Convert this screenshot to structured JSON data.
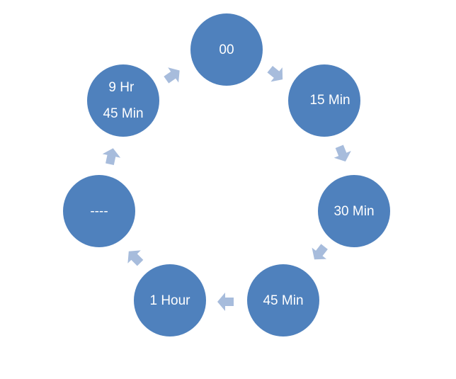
{
  "cycle": {
    "nodes": [
      {
        "lines": [
          "00"
        ]
      },
      {
        "lines": [
          "15 Min"
        ]
      },
      {
        "lines": [
          "30 Min"
        ]
      },
      {
        "lines": [
          "45 Min"
        ]
      },
      {
        "lines": [
          "1 Hour"
        ]
      },
      {
        "lines": [
          "----"
        ]
      },
      {
        "lines": [
          "9 Hr",
          "45 Min"
        ]
      }
    ],
    "colors": {
      "node_fill": "#4f81bd",
      "arrow_fill": "#a7bcdc",
      "label": "#ffffff"
    }
  }
}
